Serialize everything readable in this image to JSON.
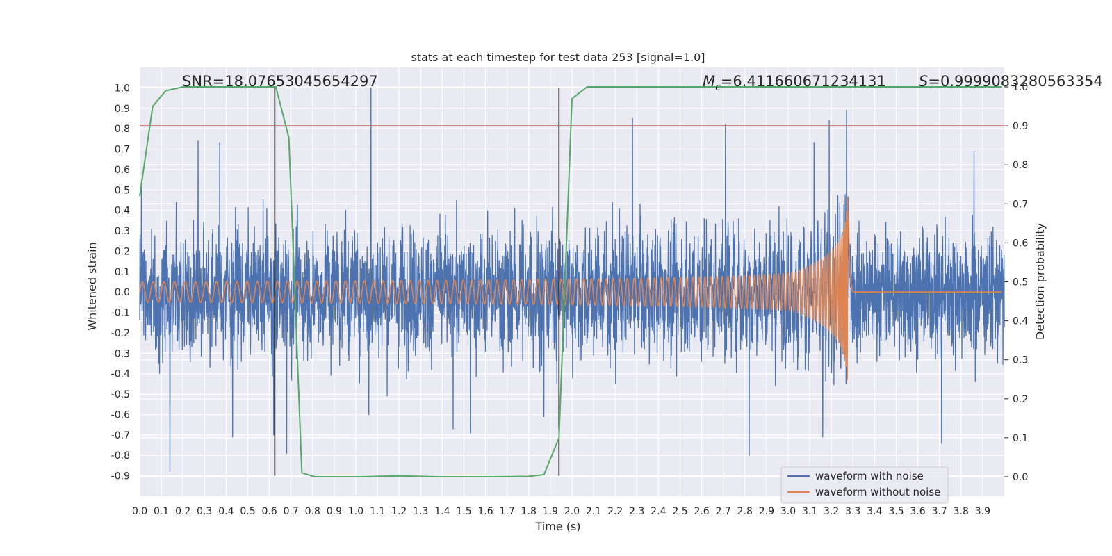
{
  "chart_data": {
    "type": "line",
    "title": "stats at each timestep for test data 253 [signal=1.0]",
    "xlabel": "Time (s)",
    "ylabel": "Whitened strain",
    "ylabel_right": "Detection probability",
    "xlim": [
      0.0,
      4.0
    ],
    "ylim": [
      -1.0,
      1.1
    ],
    "ylim_right": [
      -0.05,
      1.05
    ],
    "x_ticks": [
      0.0,
      0.1,
      0.2,
      0.3,
      0.4,
      0.5,
      0.6,
      0.7,
      0.8,
      0.9,
      1.0,
      1.1,
      1.2,
      1.3,
      1.4,
      1.5,
      1.6,
      1.7,
      1.8,
      1.9,
      2.0,
      2.1,
      2.2,
      2.3,
      2.4,
      2.5,
      2.6,
      2.7,
      2.8,
      2.9,
      3.0,
      3.1,
      3.2,
      3.3,
      3.4,
      3.5,
      3.6,
      3.7,
      3.8,
      3.9
    ],
    "x_tick_labels": [
      "0.0",
      "0.1",
      "0.2",
      "0.3",
      "0.4",
      "0.5",
      "0.6",
      "0.7",
      "0.8",
      "0.9",
      "1.0",
      "1.1",
      "1.2",
      "1.3",
      "1.4",
      "1.5",
      "1.6",
      "1.7",
      "1.8",
      "1.9",
      "2.0",
      "2.1",
      "2.2",
      "2.3",
      "2.4",
      "2.5",
      "2.6",
      "2.7",
      "2.8",
      "2.9",
      "3.0",
      "3.1",
      "3.2",
      "3.3",
      "3.4",
      "3.5",
      "3.6",
      "3.7",
      "3.8",
      "3.9"
    ],
    "y_ticks": [
      1.0,
      0.9,
      0.8,
      0.7,
      0.6,
      0.5,
      0.4,
      0.3,
      0.2,
      0.1,
      0.0,
      -0.1,
      -0.2,
      -0.3,
      -0.4,
      -0.5,
      -0.6,
      -0.7,
      -0.8,
      -0.9
    ],
    "y_tick_labels": [
      "1.0",
      "0.9",
      "0.8",
      "0.7",
      "0.6",
      "0.5",
      "0.4",
      "0.3",
      "0.2",
      "0.1",
      "0.0",
      "-0.1",
      "-0.2",
      "-0.3",
      "-0.4",
      "-0.5",
      "-0.6",
      "-0.7",
      "-0.8",
      "-0.9"
    ],
    "y_right_ticks": [
      1.0,
      0.9,
      0.8,
      0.7,
      0.6,
      0.5,
      0.4,
      0.3,
      0.2,
      0.1,
      0.0
    ],
    "y_right_tick_labels": [
      "1.0",
      "0.9",
      "0.8",
      "0.7",
      "0.6",
      "0.5",
      "0.4",
      "0.3",
      "0.2",
      "0.1",
      "0.0"
    ],
    "noisy_waveform": {
      "name": "waveform with noise",
      "color": "#4c72b0",
      "duration": 4.0,
      "typical_amplitude": 0.45,
      "peaks": [
        {
          "x": 0.14,
          "y": -0.88
        },
        {
          "x": 0.27,
          "y": 0.74
        },
        {
          "x": 0.37,
          "y": 0.73
        },
        {
          "x": 0.43,
          "y": -0.71
        },
        {
          "x": 0.62,
          "y": -0.7
        },
        {
          "x": 0.68,
          "y": -0.79
        },
        {
          "x": 1.07,
          "y": 1.0
        },
        {
          "x": 1.06,
          "y": -0.6
        },
        {
          "x": 1.45,
          "y": -0.67
        },
        {
          "x": 1.53,
          "y": -0.69
        },
        {
          "x": 1.87,
          "y": -0.61
        },
        {
          "x": 2.28,
          "y": 0.85
        },
        {
          "x": 2.71,
          "y": 0.82
        },
        {
          "x": 2.82,
          "y": -0.8
        },
        {
          "x": 3.12,
          "y": 0.73
        },
        {
          "x": 3.19,
          "y": 0.84
        },
        {
          "x": 3.27,
          "y": 0.89
        },
        {
          "x": 3.16,
          "y": -0.71
        },
        {
          "x": 3.71,
          "y": -0.74
        },
        {
          "x": 3.86,
          "y": 0.69
        }
      ]
    },
    "clean_waveform": {
      "name": "waveform without noise",
      "color": "#dd8452",
      "start_amplitude": 0.05,
      "peak_amplitude": 0.55,
      "start_frequency_hz": 20,
      "merger_time": 3.28
    },
    "detection_probability": {
      "name": "detection probability",
      "color": "#55a868",
      "x": [
        0.0,
        0.06,
        0.12,
        0.2,
        0.3,
        0.4,
        0.5,
        0.6,
        0.63,
        0.69,
        0.75,
        0.81,
        1.0,
        1.2,
        1.4,
        1.6,
        1.8,
        1.87,
        1.94,
        2.0,
        2.07,
        2.2,
        2.5,
        3.0,
        3.5,
        3.99
      ],
      "y": [
        0.72,
        0.95,
        0.99,
        1.0,
        1.0,
        1.0,
        1.0,
        1.0,
        1.0,
        0.87,
        0.01,
        0.0,
        0.0,
        0.002,
        0.0,
        0.0,
        0.001,
        0.005,
        0.1,
        0.97,
        1.0,
        1.0,
        1.0,
        1.0,
        1.0,
        1.0
      ]
    },
    "threshold": {
      "value": 0.9,
      "axis": "right",
      "color": "#c44e52"
    },
    "vertical_markers": [
      {
        "x": 0.625,
        "ymin": -0.9,
        "ymax": 1.0,
        "color": "#000000"
      },
      {
        "x": 1.94,
        "ymin": -0.9,
        "ymax": 1.0,
        "color": "#000000"
      }
    ],
    "annotations": {
      "snr": "SNR=18.07653045654297",
      "mc_symbol": "M",
      "mc_subscript": "c",
      "mc_value": "=6.411660671234131",
      "s_symbol": "S",
      "s_value": "=0.9999083280563354"
    },
    "legend": {
      "position": "lower-right",
      "entries": [
        {
          "label": "waveform with noise",
          "color": "#4c72b0"
        },
        {
          "label": "waveform without noise",
          "color": "#dd8452"
        }
      ]
    },
    "grid": true,
    "background": "#eaeaf2"
  }
}
